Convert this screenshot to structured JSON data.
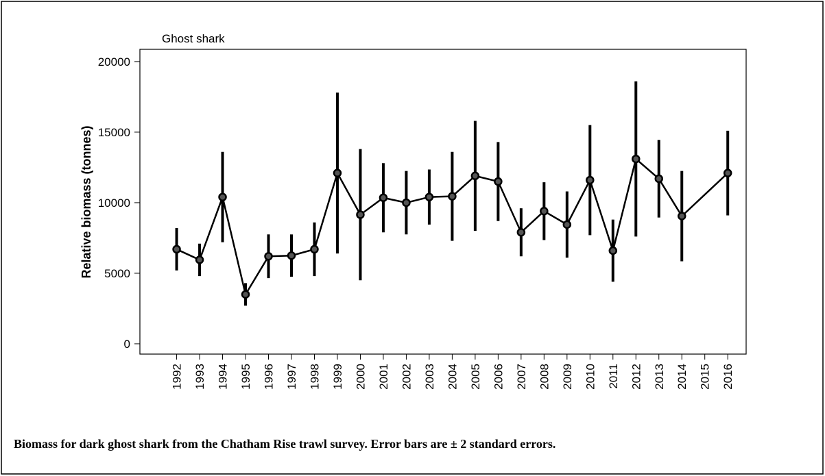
{
  "chart_data": {
    "type": "errorbar-line",
    "title": "Ghost shark",
    "y_label": "Relative biomass (tonnes)",
    "caption": "Biomass for dark ghost shark from the Chatham Rise trawl survey. Error bars are ± 2 standard errors.",
    "x": [
      1992,
      1993,
      1994,
      1995,
      1996,
      1997,
      1998,
      1999,
      2000,
      2001,
      2002,
      2003,
      2004,
      2005,
      2006,
      2007,
      2008,
      2009,
      2010,
      2011,
      2012,
      2013,
      2014,
      2016
    ],
    "values": [
      6700,
      5950,
      10400,
      3500,
      6200,
      6250,
      6700,
      12100,
      9150,
      10350,
      10000,
      10400,
      10450,
      11900,
      11500,
      7900,
      9400,
      8450,
      11600,
      6600,
      13100,
      11700,
      9050,
      12100
    ],
    "errors": [
      1500,
      1150,
      3200,
      800,
      1550,
      1500,
      1900,
      5700,
      4650,
      2450,
      2250,
      1950,
      3150,
      3900,
      2800,
      1700,
      2050,
      2350,
      3900,
      2200,
      5500,
      2750,
      3200,
      3000
    ],
    "color": "#000000",
    "xlim": [
      1990.4,
      2016.8
    ],
    "xticks": [
      1992,
      1993,
      1994,
      1995,
      1996,
      1997,
      1998,
      1999,
      2000,
      2001,
      2002,
      2003,
      2004,
      2005,
      2006,
      2007,
      2008,
      2009,
      2010,
      2011,
      2012,
      2013,
      2014,
      2015,
      2016
    ],
    "ylim": [
      -730,
      20870
    ],
    "yticks": [
      0,
      5000,
      10000,
      15000,
      20000
    ]
  }
}
